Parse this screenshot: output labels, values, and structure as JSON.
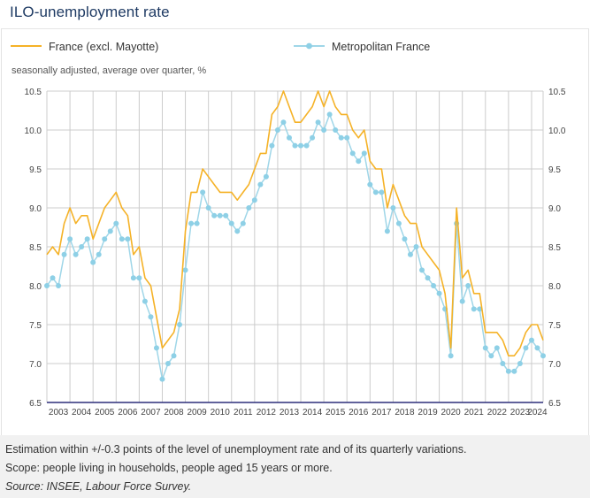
{
  "header": {
    "title": "ILO-unemployment rate"
  },
  "footer": {
    "note1": "Estimation within +/-0.3 points of the level of unemployment rate and of its quarterly variations.",
    "note2": "Scope: people living in households, people aged 15 years or more.",
    "source": "Source: INSEE, Labour Force Survey."
  },
  "colors": {
    "france": "#f5b227",
    "metropolitan": "#9fd6e8",
    "metropolitan_marker": "#8ed0e6",
    "baseline": "#2d2f7a",
    "grid": "#cccccc",
    "title": "#1e3a63"
  },
  "chart_data": {
    "type": "line",
    "subtitle": "seasonally adjusted, average over quarter, %",
    "ylim": [
      6.5,
      10.5
    ],
    "yticks": [
      "10.5",
      "10.0",
      "9.5",
      "9.0",
      "8.5",
      "8.0",
      "7.5",
      "7.0",
      "6.5"
    ],
    "xlabels": [
      "2003",
      "2004",
      "2005",
      "2006",
      "2007",
      "2008",
      "2009",
      "2010",
      "2011",
      "2012",
      "2013",
      "2014",
      "2015",
      "2016",
      "2017",
      "2018",
      "2019",
      "2020",
      "2021",
      "2022",
      "2023",
      "2024"
    ],
    "x_start": 2003.0,
    "x_end": 2024.5,
    "series": [
      {
        "name": "France (excl. Mayotte)",
        "markers": false,
        "values": [
          8.4,
          8.5,
          8.4,
          8.8,
          9.0,
          8.8,
          8.9,
          8.9,
          8.6,
          8.8,
          9.0,
          9.1,
          9.2,
          9.0,
          8.9,
          8.4,
          8.5,
          8.1,
          8.0,
          7.6,
          7.2,
          7.3,
          7.4,
          7.7,
          8.7,
          9.2,
          9.2,
          9.5,
          9.4,
          9.3,
          9.2,
          9.2,
          9.2,
          9.1,
          9.2,
          9.3,
          9.5,
          9.7,
          9.7,
          10.2,
          10.3,
          10.5,
          10.3,
          10.1,
          10.1,
          10.2,
          10.3,
          10.5,
          10.3,
          10.5,
          10.3,
          10.2,
          10.2,
          10.0,
          9.9,
          10.0,
          9.6,
          9.5,
          9.5,
          9.0,
          9.3,
          9.1,
          8.9,
          8.8,
          8.8,
          8.5,
          8.4,
          8.3,
          8.2,
          7.9,
          7.2,
          9.0,
          8.1,
          8.2,
          7.9,
          7.9,
          7.4,
          7.4,
          7.4,
          7.3,
          7.1,
          7.1,
          7.2,
          7.4,
          7.5,
          7.5,
          7.3
        ]
      },
      {
        "name": "Metropolitan France",
        "markers": true,
        "values": [
          8.0,
          8.1,
          8.0,
          8.4,
          8.6,
          8.4,
          8.5,
          8.6,
          8.3,
          8.4,
          8.6,
          8.7,
          8.8,
          8.6,
          8.6,
          8.1,
          8.1,
          7.8,
          7.6,
          7.2,
          6.8,
          7.0,
          7.1,
          7.5,
          8.2,
          8.8,
          8.8,
          9.2,
          9.0,
          8.9,
          8.9,
          8.9,
          8.8,
          8.7,
          8.8,
          9.0,
          9.1,
          9.3,
          9.4,
          9.8,
          10.0,
          10.1,
          9.9,
          9.8,
          9.8,
          9.8,
          9.9,
          10.1,
          10.0,
          10.2,
          10.0,
          9.9,
          9.9,
          9.7,
          9.6,
          9.7,
          9.3,
          9.2,
          9.2,
          8.7,
          9.0,
          8.8,
          8.6,
          8.4,
          8.5,
          8.2,
          8.1,
          8.0,
          7.9,
          7.7,
          7.1,
          8.8,
          7.8,
          8.0,
          7.7,
          7.7,
          7.2,
          7.1,
          7.2,
          7.0,
          6.9,
          6.9,
          7.0,
          7.2,
          7.3,
          7.2,
          7.1
        ]
      }
    ]
  }
}
